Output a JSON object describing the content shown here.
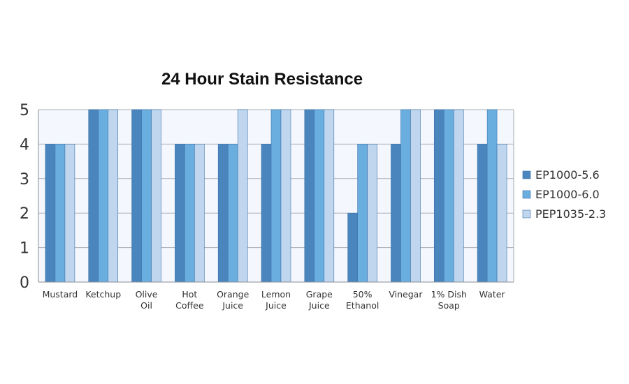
{
  "chart_data": {
    "type": "bar",
    "title": "24 Hour Stain Resistance",
    "xlabel": "",
    "ylabel": "",
    "ylim": [
      0,
      5
    ],
    "yticks": [
      "0",
      "1",
      "2",
      "3",
      "4",
      "5"
    ],
    "categories": [
      [
        "Mustard"
      ],
      [
        "Ketchup"
      ],
      [
        "Olive",
        "Oil"
      ],
      [
        "Hot",
        "Coffee"
      ],
      [
        "Orange",
        "Juice"
      ],
      [
        "Lemon",
        "Juice"
      ],
      [
        "Grape",
        "Juice"
      ],
      [
        "50%",
        "Ethanol"
      ],
      [
        "Vinegar"
      ],
      [
        "1% Dish",
        "Soap"
      ],
      [
        "Water"
      ]
    ],
    "series": [
      {
        "name": "EP1000-5.6",
        "color": "#4a86bd",
        "values": [
          4,
          5,
          5,
          4,
          4,
          4,
          5,
          2,
          4,
          5,
          4
        ]
      },
      {
        "name": "EP1000-6.0",
        "color": "#6aaee0",
        "values": [
          4,
          5,
          5,
          4,
          4,
          5,
          5,
          4,
          5,
          5,
          5
        ]
      },
      {
        "name": "PEP1035-2.3",
        "color": "#bfd6ee",
        "values": [
          4,
          5,
          5,
          4,
          5,
          5,
          5,
          4,
          5,
          5,
          4
        ]
      }
    ],
    "grid": true,
    "legend_position": "right",
    "plot_background": "#f4f8fe"
  }
}
